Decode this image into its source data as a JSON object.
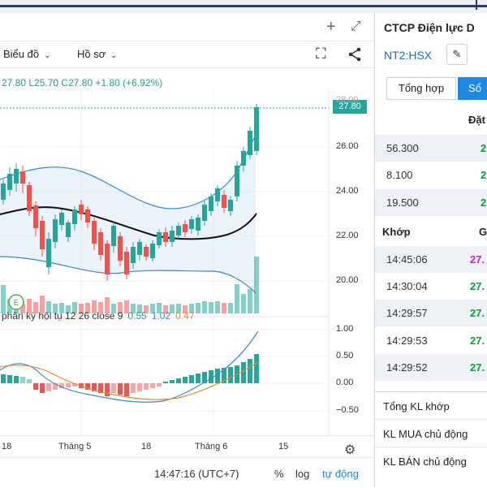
{
  "window": {
    "add_icon": "+",
    "expand_icon": "⤢"
  },
  "toolbar": {
    "chart_label": "Biểu đồ",
    "profile_label": "Hồ sơ",
    "fullscreen_icon": "⛶",
    "share_icon": "share"
  },
  "ohlc": {
    "close_top": "27.80",
    "low": "L25.70",
    "close": "C27.80",
    "change": "+1.80 (+6.92%)"
  },
  "price_axis": {
    "current_price": "27.80",
    "ticks": [
      "26.00",
      "24.00",
      "22.00",
      "20.00"
    ],
    "top_partial": "28.00"
  },
  "macd": {
    "label": "phân kỳ hội tụ 12 26 close 9",
    "hist": "0.55",
    "macd": "1.02",
    "signal": "0.47",
    "ticks": [
      "1.00",
      "0.50",
      "0.00",
      "−0.50"
    ]
  },
  "x_axis": {
    "labels": [
      "18",
      "Tháng 5",
      "18",
      "Tháng 6",
      "15"
    ]
  },
  "bottom_bar": {
    "time": "14:47:16 (UTC+7)",
    "percent": "%",
    "log": "log",
    "auto": "tự động"
  },
  "event_marker": "E",
  "right_panel": {
    "company": "CTCP Điện lực D",
    "ticker": "NT2:HSX",
    "tabs": [
      "Tổng hợp",
      "Sổ"
    ],
    "order_header": "Đặt",
    "orders": [
      {
        "volume": "56.300",
        "price": "2"
      },
      {
        "volume": "8.100",
        "price": "2"
      },
      {
        "volume": "19.500",
        "price": "2"
      }
    ],
    "trades_header": "Khớp",
    "trades_header_right": "G",
    "trades": [
      {
        "time": "14:45:06",
        "price": "27.",
        "color": "#d41fc9"
      },
      {
        "time": "14:30:04",
        "price": "27.",
        "color": "#0a9d3a"
      },
      {
        "time": "14:29:57",
        "price": "27.",
        "color": "#0a9d3a"
      },
      {
        "time": "14:29:53",
        "price": "27.",
        "color": "#0a9d3a"
      },
      {
        "time": "14:29:52",
        "price": "27.",
        "color": "#0a9d3a"
      }
    ],
    "summary": [
      "Tổng KL khớp",
      "KL MUA chủ động",
      "KL BÁN chủ động"
    ]
  },
  "colors": {
    "up": "#26a69a",
    "down": "#ef5350",
    "accent": "#1e88e5"
  }
}
